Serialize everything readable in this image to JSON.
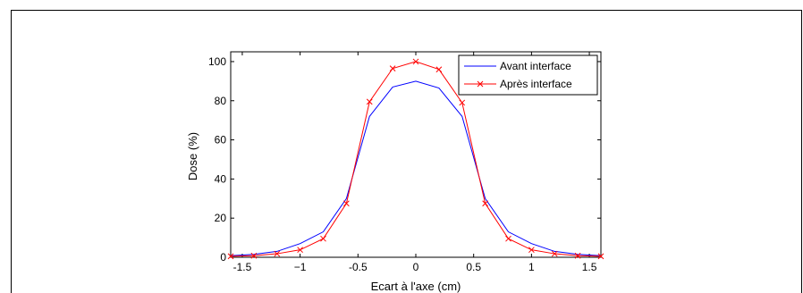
{
  "chart_data": {
    "type": "line",
    "title": "",
    "xlabel": "Ecart à l'axe (cm)",
    "ylabel": "Dose (%)",
    "xlim": [
      -1.6,
      1.6
    ],
    "ylim": [
      0,
      105
    ],
    "x_ticks": [
      -1.5,
      -1,
      -0.5,
      0,
      0.5,
      1,
      1.5
    ],
    "x_tick_labels": [
      "-1.5",
      "−1",
      "-0.5",
      "0",
      "0.5",
      "1",
      "1.5"
    ],
    "y_ticks": [
      0,
      20,
      40,
      60,
      80,
      100
    ],
    "y_tick_labels": [
      "0",
      "20",
      "40",
      "60",
      "80",
      "100"
    ],
    "grid": false,
    "legend_position": "top-right",
    "series": [
      {
        "name": "Avant interface",
        "color": "#0000ff",
        "marker": "none",
        "x": [
          -1.6,
          -1.4,
          -1.2,
          -1.0,
          -0.8,
          -0.6,
          -0.4,
          -0.2,
          0.0,
          0.2,
          0.4,
          0.6,
          0.8,
          1.0,
          1.2,
          1.4,
          1.6
        ],
        "y": [
          0.8,
          1.5,
          3.0,
          7.0,
          13.0,
          30.0,
          72.0,
          87.0,
          90.0,
          86.5,
          72.0,
          30.0,
          13.0,
          7.0,
          3.0,
          1.5,
          0.8
        ]
      },
      {
        "name": "Après interface",
        "color": "#ff0000",
        "marker": "x",
        "x": [
          -1.6,
          -1.4,
          -1.2,
          -1.0,
          -0.8,
          -0.6,
          -0.4,
          -0.2,
          0.0,
          0.2,
          0.4,
          0.6,
          0.8,
          1.0,
          1.2,
          1.4,
          1.6
        ],
        "y": [
          0.5,
          0.8,
          1.8,
          3.8,
          9.5,
          27.5,
          79.5,
          96.5,
          100.0,
          96.0,
          79.0,
          27.5,
          9.5,
          3.8,
          1.8,
          0.8,
          0.5
        ]
      }
    ]
  }
}
